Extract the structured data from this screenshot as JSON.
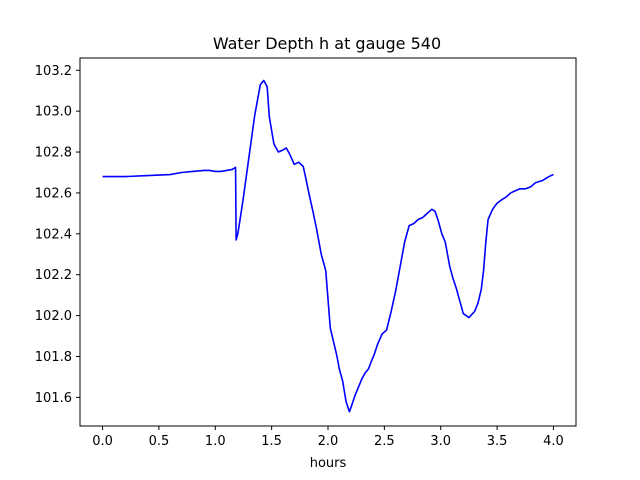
{
  "chart_data": {
    "type": "line",
    "title": "Water Depth h at gauge 540",
    "xlabel": "hours",
    "ylabel": "",
    "xlim": [
      -0.2,
      4.2
    ],
    "ylim": [
      101.46,
      103.26
    ],
    "grid": false,
    "legend": "none",
    "xticks": [
      0.0,
      0.5,
      1.0,
      1.5,
      2.0,
      2.5,
      3.0,
      3.5,
      4.0
    ],
    "xtick_labels": [
      "0.0",
      "0.5",
      "1.0",
      "1.5",
      "2.0",
      "2.5",
      "3.0",
      "3.5",
      "4.0"
    ],
    "yticks": [
      101.6,
      101.8,
      102.0,
      102.2,
      102.4,
      102.6,
      102.8,
      103.0,
      103.2
    ],
    "ytick_labels": [
      "101.6",
      "101.8",
      "102.0",
      "102.2",
      "102.4",
      "102.6",
      "102.8",
      "103.0",
      "103.2"
    ],
    "series": [
      {
        "color": "#0000ff",
        "x": [
          0.0,
          0.2,
          0.4,
          0.6,
          0.7,
          0.8,
          0.9,
          0.95,
          1.0,
          1.05,
          1.1,
          1.15,
          1.18,
          1.185,
          1.2,
          1.22,
          1.25,
          1.3,
          1.35,
          1.4,
          1.43,
          1.46,
          1.48,
          1.52,
          1.56,
          1.6,
          1.63,
          1.66,
          1.7,
          1.74,
          1.78,
          1.8,
          1.83,
          1.87,
          1.9,
          1.94,
          1.98,
          2.02,
          2.05,
          2.08,
          2.1,
          2.13,
          2.16,
          2.19,
          2.21,
          2.24,
          2.27,
          2.3,
          2.33,
          2.36,
          2.38,
          2.41,
          2.44,
          2.48,
          2.52,
          2.56,
          2.6,
          2.64,
          2.68,
          2.72,
          2.76,
          2.8,
          2.84,
          2.88,
          2.92,
          2.95,
          2.98,
          3.01,
          3.04,
          3.06,
          3.08,
          3.11,
          3.14,
          3.17,
          3.2,
          3.25,
          3.3,
          3.33,
          3.36,
          3.38,
          3.4,
          3.42,
          3.46,
          3.5,
          3.55,
          3.58,
          3.62,
          3.66,
          3.7,
          3.75,
          3.8,
          3.84,
          3.9,
          3.96,
          4.0
        ],
        "values": [
          102.68,
          102.68,
          102.685,
          102.69,
          102.7,
          102.705,
          102.71,
          102.71,
          102.705,
          102.705,
          102.71,
          102.715,
          102.725,
          102.37,
          102.4,
          102.47,
          102.58,
          102.78,
          102.98,
          103.13,
          103.15,
          103.12,
          102.97,
          102.84,
          102.8,
          102.81,
          102.82,
          102.79,
          102.74,
          102.75,
          102.73,
          102.68,
          102.6,
          102.5,
          102.42,
          102.3,
          102.22,
          101.94,
          101.87,
          101.8,
          101.74,
          101.68,
          101.58,
          101.53,
          101.56,
          101.61,
          101.65,
          101.69,
          101.72,
          101.74,
          101.77,
          101.81,
          101.86,
          101.91,
          101.93,
          102.02,
          102.12,
          102.24,
          102.36,
          102.44,
          102.45,
          102.47,
          102.48,
          102.5,
          102.52,
          102.51,
          102.46,
          102.4,
          102.36,
          102.3,
          102.24,
          102.18,
          102.13,
          102.07,
          102.01,
          101.99,
          102.02,
          102.06,
          102.13,
          102.22,
          102.36,
          102.47,
          102.52,
          102.55,
          102.57,
          102.58,
          102.6,
          102.61,
          102.62,
          102.62,
          102.63,
          102.65,
          102.66,
          102.68,
          102.69
        ]
      }
    ]
  }
}
